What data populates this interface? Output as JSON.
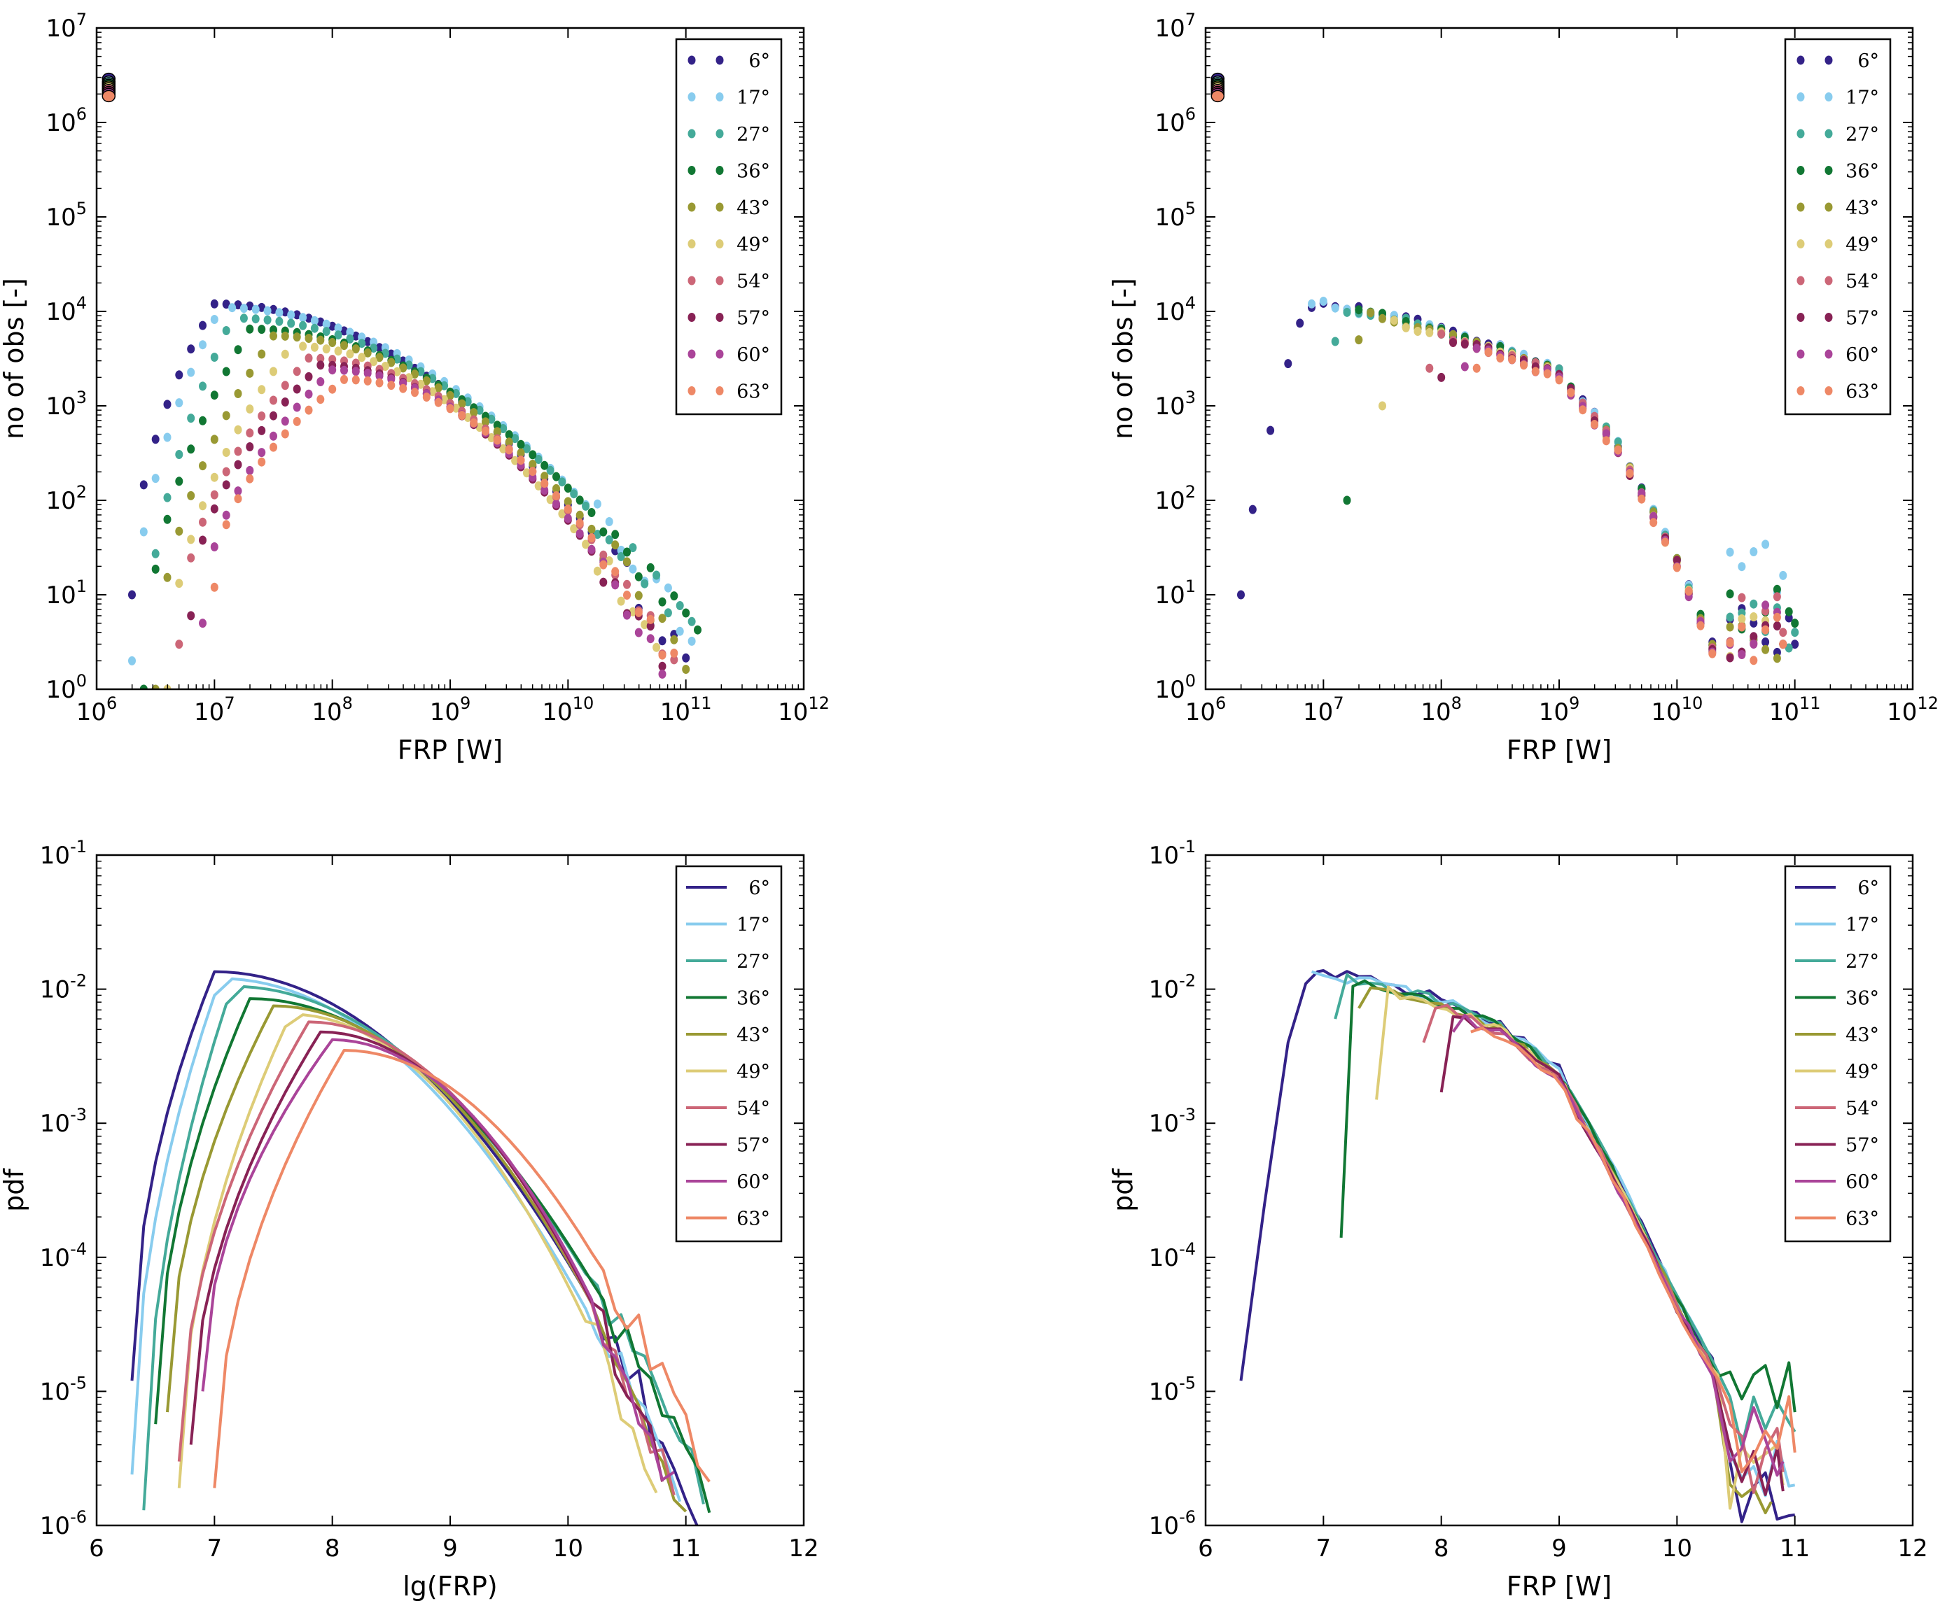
{
  "colors": [
    "#332288",
    "#88ccee",
    "#44aa99",
    "#117733",
    "#999933",
    "#ddcc77",
    "#cc6677",
    "#882255",
    "#aa4499",
    "#ee8866"
  ],
  "legend_labels": [
    "6°",
    "17°",
    "27°",
    "36°",
    "43°",
    "49°",
    "54°",
    "57°",
    "60°",
    "63°"
  ],
  "chart_data": [
    {
      "id": "scatter_left",
      "type": "scatter",
      "xlabel": "FRP [W]",
      "ylabel": "no of obs [-]",
      "xscale": "log",
      "yscale": "log",
      "xlim": [
        1000000.0,
        1000000000000.0
      ],
      "ylim": [
        1,
        10000000.0
      ],
      "xticks": [
        {
          "base": "10",
          "exp": "6"
        },
        {
          "base": "10",
          "exp": "7"
        },
        {
          "base": "10",
          "exp": "8"
        },
        {
          "base": "10",
          "exp": "9"
        },
        {
          "base": "10",
          "exp": "10"
        },
        {
          "base": "10",
          "exp": "11"
        },
        {
          "base": "10",
          "exp": "12"
        }
      ],
      "yticks": [
        {
          "base": "10",
          "exp": "0"
        },
        {
          "base": "10",
          "exp": "1"
        },
        {
          "base": "10",
          "exp": "2"
        },
        {
          "base": "10",
          "exp": "3"
        },
        {
          "base": "10",
          "exp": "4"
        },
        {
          "base": "10",
          "exp": "5"
        },
        {
          "base": "10",
          "exp": "6"
        },
        {
          "base": "10",
          "exp": "7"
        }
      ],
      "legend": "top-right",
      "peak_lg": [
        7.0,
        7.05,
        7.15,
        7.3,
        7.5,
        7.65,
        7.8,
        7.9,
        8.0,
        8.1
      ],
      "peak_count": [
        12000,
        11000,
        8500,
        6500,
        5500,
        4300,
        3200,
        2700,
        2400,
        1900
      ],
      "start_lg": [
        6.3,
        6.3,
        6.4,
        6.4,
        6.5,
        6.6,
        6.7,
        6.8,
        6.9,
        7.0
      ],
      "start_count": [
        10,
        2,
        1,
        1,
        1,
        1,
        3,
        6,
        5,
        12
      ],
      "end_lg": [
        11.0,
        11.1,
        11.1,
        11.1,
        11.0,
        10.8,
        10.9,
        10.8,
        10.8,
        10.9
      ],
      "end_count": [
        2,
        3,
        3,
        3,
        2,
        2,
        2,
        2,
        2,
        2
      ],
      "outlier_x": 1200000.0,
      "outlier_counts": [
        2900000,
        2700000,
        2600000,
        2500000,
        2400000,
        2300000,
        2200000,
        2100000,
        2000000,
        1900000
      ]
    },
    {
      "id": "scatter_right",
      "type": "scatter",
      "xlabel": "FRP [W]",
      "ylabel": "no of obs [-]",
      "xscale": "log",
      "yscale": "log",
      "xlim": [
        1000000.0,
        1000000000000.0
      ],
      "ylim": [
        1,
        10000000.0
      ],
      "xticks": [
        {
          "base": "10",
          "exp": "6"
        },
        {
          "base": "10",
          "exp": "7"
        },
        {
          "base": "10",
          "exp": "8"
        },
        {
          "base": "10",
          "exp": "9"
        },
        {
          "base": "10",
          "exp": "10"
        },
        {
          "base": "10",
          "exp": "11"
        },
        {
          "base": "10",
          "exp": "12"
        }
      ],
      "yticks": [
        {
          "base": "10",
          "exp": "0"
        },
        {
          "base": "10",
          "exp": "1"
        },
        {
          "base": "10",
          "exp": "2"
        },
        {
          "base": "10",
          "exp": "3"
        },
        {
          "base": "10",
          "exp": "4"
        },
        {
          "base": "10",
          "exp": "5"
        },
        {
          "base": "10",
          "exp": "6"
        },
        {
          "base": "10",
          "exp": "7"
        }
      ],
      "legend": "top-right",
      "rise_x": [
        6.3,
        6.4,
        6.55,
        6.7,
        6.8,
        6.9
      ],
      "rise_y": [
        10,
        80,
        550,
        2800,
        7500,
        11000
      ],
      "main_curve_x": [
        7.0,
        7.5,
        8.0,
        8.5,
        9.0,
        9.5,
        10.0,
        10.3
      ],
      "main_curve_y": [
        12000,
        9500,
        6500,
        4200,
        2400,
        400,
        25,
        3
      ],
      "start_lg": [
        6.3,
        6.9,
        7.1,
        7.2,
        7.3,
        7.5,
        7.9,
        8.0,
        8.2,
        8.3
      ],
      "start_count": [
        10,
        12000,
        4800,
        100,
        5000,
        1000,
        2500,
        2000,
        2600,
        2500
      ],
      "end_lg": [
        11.0,
        10.9,
        11.0,
        11.0,
        10.9,
        10.9,
        10.9,
        10.9,
        10.9,
        10.9
      ],
      "end_count": [
        3,
        16,
        4,
        5,
        3,
        3,
        4,
        3,
        3,
        3
      ],
      "outlier_x": 1200000.0,
      "outlier_counts": [
        2900000,
        2700000,
        2600000,
        2500000,
        2400000,
        2300000,
        2200000,
        2100000,
        2000000,
        1900000
      ]
    },
    {
      "id": "pdf_left",
      "type": "line",
      "xlabel": "lg(FRP)",
      "ylabel": "pdf",
      "xscale": "linear",
      "yscale": "log",
      "xlim": [
        6,
        12
      ],
      "ylim": [
        1e-06,
        0.1
      ],
      "xticks": [
        {
          "base": "6",
          "exp": ""
        },
        {
          "base": "7",
          "exp": ""
        },
        {
          "base": "8",
          "exp": ""
        },
        {
          "base": "9",
          "exp": ""
        },
        {
          "base": "10",
          "exp": ""
        },
        {
          "base": "11",
          "exp": ""
        },
        {
          "base": "12",
          "exp": ""
        }
      ],
      "yticks": [
        {
          "base": "10",
          "exp": "-6"
        },
        {
          "base": "10",
          "exp": "-5"
        },
        {
          "base": "10",
          "exp": "-4"
        },
        {
          "base": "10",
          "exp": "-3"
        },
        {
          "base": "10",
          "exp": "-2"
        },
        {
          "base": "10",
          "exp": "-1"
        }
      ],
      "legend": "top-right",
      "peak_lg": [
        7.0,
        7.05,
        7.15,
        7.3,
        7.5,
        7.65,
        7.8,
        7.9,
        8.0,
        8.1
      ],
      "peak_count": [
        0.0135,
        0.012,
        0.0105,
        0.0085,
        0.0075,
        0.0065,
        0.0057,
        0.0048,
        0.0042,
        0.0035
      ],
      "start_lg": [
        6.3,
        6.3,
        6.4,
        6.5,
        6.6,
        6.7,
        6.7,
        6.8,
        6.9,
        7.0
      ],
      "start_count": [
        1.2e-05,
        2.4e-06,
        1.3e-06,
        5.7e-06,
        7e-06,
        1.9e-06,
        3e-06,
        4e-06,
        1e-05,
        1.9e-06
      ],
      "end_lg": [
        11.1,
        11.0,
        11.2,
        11.2,
        11.0,
        10.8,
        10.9,
        10.8,
        10.9,
        11.2
      ],
      "end_count": [
        1.2e-06,
        1.2e-06,
        1.3e-06,
        1.3e-06,
        1.4e-06,
        1.5e-06,
        1.8e-06,
        3e-06,
        1.8e-06,
        1.8e-06
      ]
    },
    {
      "id": "pdf_right",
      "type": "line",
      "xlabel": "FRP [W]",
      "ylabel": "pdf",
      "xscale": "linear",
      "yscale": "log",
      "xlim": [
        6,
        12
      ],
      "ylim": [
        1e-06,
        0.1
      ],
      "xticks": [
        {
          "base": "6",
          "exp": ""
        },
        {
          "base": "7",
          "exp": ""
        },
        {
          "base": "8",
          "exp": ""
        },
        {
          "base": "9",
          "exp": ""
        },
        {
          "base": "10",
          "exp": ""
        },
        {
          "base": "11",
          "exp": ""
        },
        {
          "base": "12",
          "exp": ""
        }
      ],
      "yticks": [
        {
          "base": "10",
          "exp": "-6"
        },
        {
          "base": "10",
          "exp": "-5"
        },
        {
          "base": "10",
          "exp": "-4"
        },
        {
          "base": "10",
          "exp": "-3"
        },
        {
          "base": "10",
          "exp": "-2"
        },
        {
          "base": "10",
          "exp": "-1"
        }
      ],
      "legend": "top-right",
      "rise_x": [
        6.3,
        6.5,
        6.7,
        6.85,
        6.95
      ],
      "rise_y": [
        1.2e-05,
        0.00025,
        0.004,
        0.011,
        0.0135
      ],
      "main_curve_x": [
        7.0,
        7.5,
        8.0,
        8.5,
        9.0,
        9.5,
        10.0,
        10.5,
        11.0
      ],
      "main_curve_y": [
        0.0135,
        0.011,
        0.0085,
        0.0055,
        0.0025,
        0.0004,
        5e-05,
        8e-06,
        3e-06
      ],
      "start_lg": [
        6.3,
        6.9,
        7.1,
        7.15,
        7.3,
        7.45,
        7.85,
        8.0,
        8.1,
        8.25
      ],
      "start_count": [
        1.2e-05,
        0.0135,
        0.006,
        0.00014,
        0.0072,
        0.0015,
        0.004,
        0.0017,
        0.0048,
        0.0048
      ],
      "end_lg": [
        11.0,
        11.0,
        11.0,
        11.0,
        10.8,
        10.9,
        10.9,
        10.9,
        10.9,
        11.0
      ],
      "end_count": [
        1.2e-06,
        2e-06,
        5e-06,
        7e-06,
        1.5e-06,
        2e-06,
        2.5e-06,
        1.8e-06,
        3e-06,
        3.5e-06
      ]
    }
  ]
}
